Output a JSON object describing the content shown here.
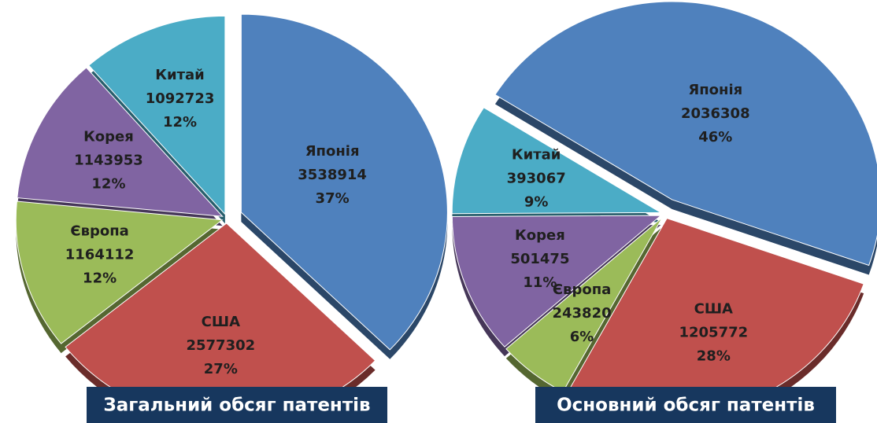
{
  "chart_data": [
    {
      "type": "pie",
      "title": "Загальний обсяг патентів",
      "categories": [
        "Японія",
        "США",
        "Європа",
        "Корея",
        "Китай"
      ],
      "values": [
        3538914,
        2577302,
        1164112,
        1143953,
        1092723
      ],
      "percentages": [
        37,
        27,
        12,
        12,
        12
      ],
      "percent_labels": [
        "37%",
        "27%",
        "12%",
        "12%",
        "12%"
      ],
      "colors": [
        "#4f81bd",
        "#c0504d",
        "#9bbb59",
        "#8064a2",
        "#4bacc6"
      ]
    },
    {
      "type": "pie",
      "title": "Основний обсяг патентів",
      "categories": [
        "Японія",
        "США",
        "Європа",
        "Корея",
        "Китай"
      ],
      "values": [
        2036308,
        1205772,
        243820,
        501475,
        393067
      ],
      "percentages": [
        46,
        28,
        6,
        11,
        9
      ],
      "percent_labels": [
        "46%",
        "28%",
        "6%",
        "11%",
        "9%"
      ],
      "colors": [
        "#4f81bd",
        "#c0504d",
        "#9bbb59",
        "#8064a2",
        "#4bacc6"
      ]
    }
  ]
}
